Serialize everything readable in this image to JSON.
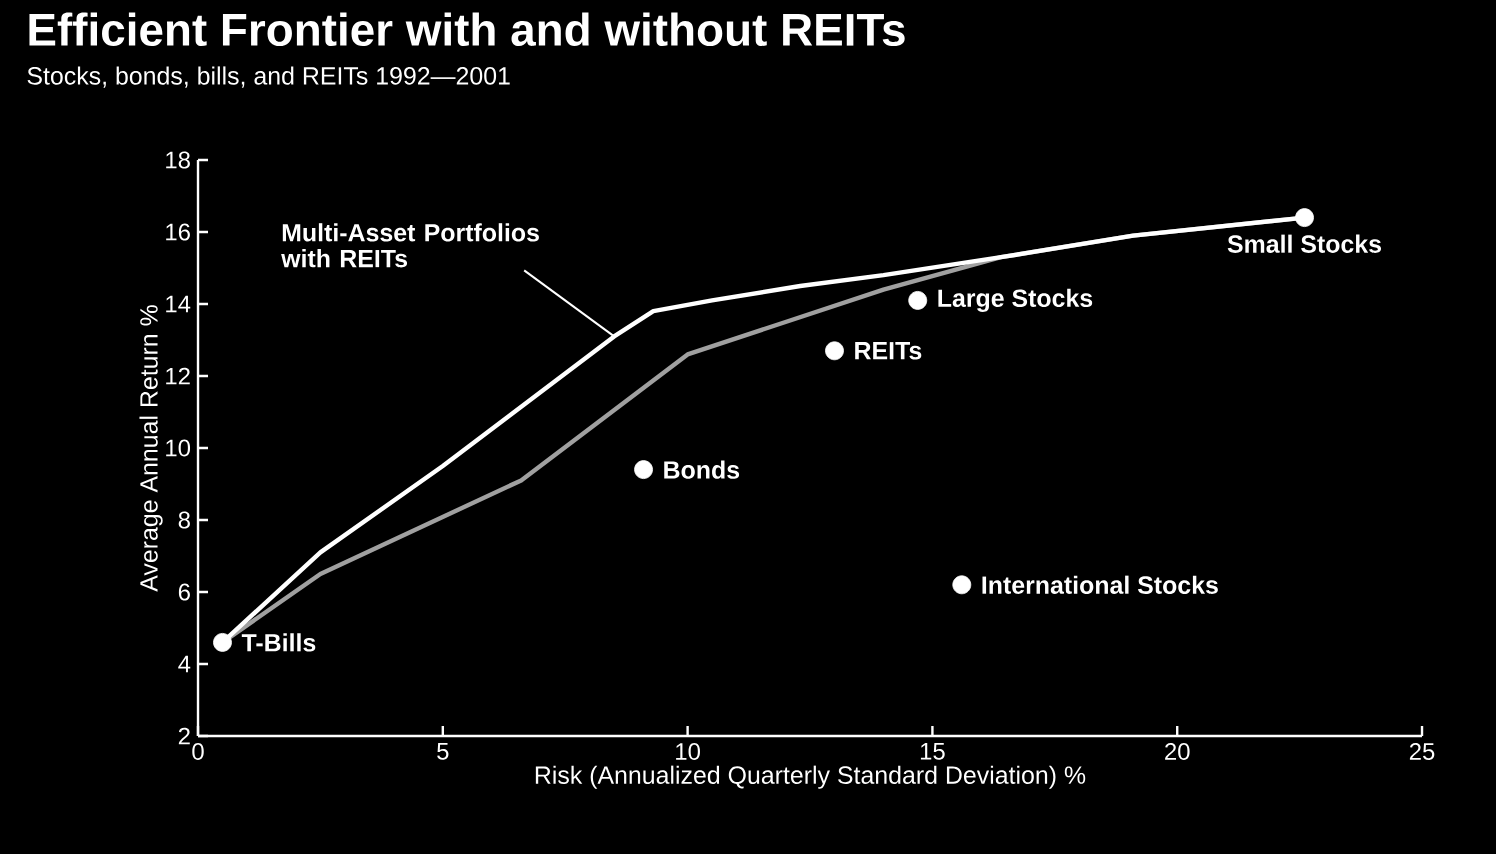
{
  "chart_data": {
    "type": "scatter",
    "title": "Efficient Frontier with and without REITs",
    "subtitle": "Stocks, bonds, bills, and REITs 1992—2001",
    "xlabel": "Risk (Annualized Quarterly Standard Deviation) %",
    "ylabel": "Average Annual Return %",
    "xlim": [
      0,
      25
    ],
    "xticks": [
      0,
      5,
      10,
      15,
      20,
      25
    ],
    "ylim": [
      2,
      18
    ],
    "yticks": [
      2,
      4,
      6,
      8,
      10,
      12,
      14,
      16,
      18
    ],
    "series": [
      {
        "type": "line",
        "color": "#a0a0a0",
        "marker": "none",
        "x": [
          0.5,
          2.5,
          6.6,
          10,
          12,
          14,
          16.4,
          19.1,
          22.6
        ],
        "values": [
          4.6,
          6.5,
          9.1,
          12.6,
          13.5,
          14.4,
          15.3,
          15.9,
          16.4
        ]
      },
      {
        "type": "line",
        "color": "#ffffff",
        "marker": "none",
        "x": [
          0.5,
          2.5,
          5,
          8.5,
          9.3,
          10.5,
          12.3,
          14,
          16.4,
          19.1,
          22.6
        ],
        "values": [
          4.6,
          7.1,
          9.5,
          13.1,
          13.8,
          14.1,
          14.5,
          14.8,
          15.3,
          15.9,
          16.4
        ]
      },
      {
        "type": "scatter",
        "color": "#ffffff",
        "marker": "circle",
        "x": [
          0.5,
          9.1,
          13.0,
          14.7,
          15.6,
          22.6
        ],
        "values": [
          4.6,
          9.4,
          12.7,
          14.1,
          6.2,
          16.4
        ]
      }
    ],
    "annotations": [
      {
        "text": "Multi-Asset Portfolios with REITs",
        "x": 8.5,
        "y": 13.1
      },
      {
        "text": "T-Bills",
        "x": 0.5,
        "y": 4.6
      },
      {
        "text": "Bonds",
        "x": 9.1,
        "y": 9.4
      },
      {
        "text": "REITs",
        "x": 13.0,
        "y": 12.7
      },
      {
        "text": "Large Stocks",
        "x": 14.7,
        "y": 14.1
      },
      {
        "text": "International Stocks",
        "x": 15.6,
        "y": 6.2
      },
      {
        "text": "Small Stocks",
        "x": 22.6,
        "y": 16.4
      }
    ]
  }
}
